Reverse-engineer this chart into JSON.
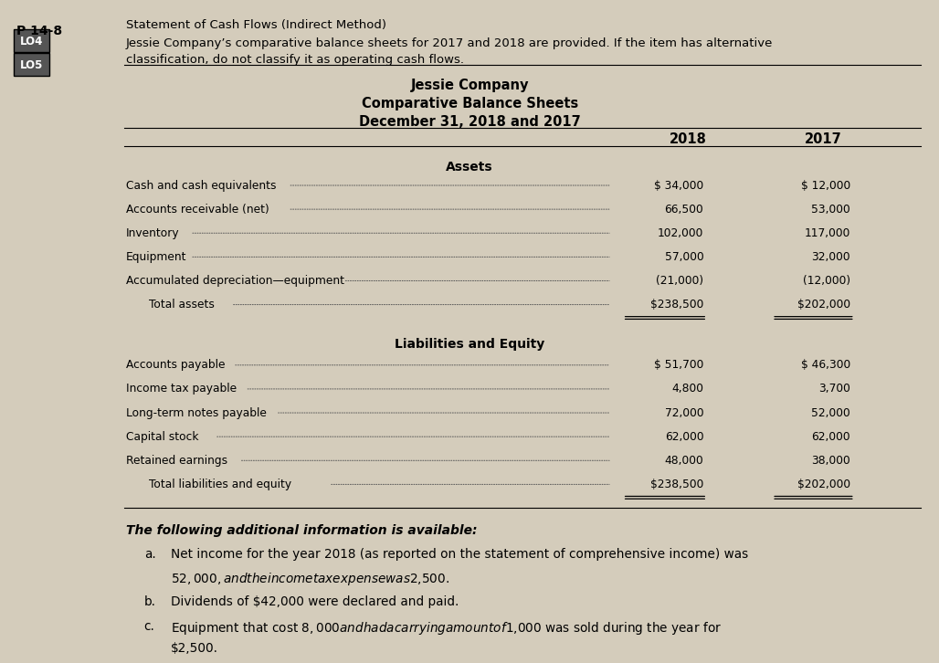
{
  "bg_color": "#d4ccbb",
  "title_problem": "P 14-8",
  "lo_labels": [
    "LO4",
    "LO5"
  ],
  "header_line1": "Statement of Cash Flows (Indirect Method)",
  "header_line2": "Jessie Company’s comparative balance sheets for 2017 and 2018 are provided. If the item has alternative",
  "header_line3": "classification, do not classify it as operating cash flows.",
  "company_title": "Jessie Company",
  "sheet_title": "Comparative Balance Sheets",
  "date_title": "December 31, 2018 and 2017",
  "col_2018": "2018",
  "col_2017": "2017",
  "assets_header": "Assets",
  "asset_rows": [
    {
      "label": "Cash and cash equivalents",
      "val2018": "$ 34,000",
      "val2017": "$ 12,000"
    },
    {
      "label": "Accounts receivable (net)",
      "val2018": "66,500",
      "val2017": "53,000"
    },
    {
      "label": "Inventory",
      "val2018": "102,000",
      "val2017": "117,000"
    },
    {
      "label": "Equipment",
      "val2018": "57,000",
      "val2017": "32,000"
    },
    {
      "label": "Accumulated depreciation—equipment",
      "val2018": "(21,000)",
      "val2017": "(12,000)"
    },
    {
      "label": "  Total assets",
      "val2018": "$238,500",
      "val2017": "$202,000",
      "is_total": true
    }
  ],
  "liabilities_header": "Liabilities and Equity",
  "liability_rows": [
    {
      "label": "Accounts payable",
      "val2018": "$ 51,700",
      "val2017": "$ 46,300"
    },
    {
      "label": "Income tax payable",
      "val2018": "4,800",
      "val2017": "3,700"
    },
    {
      "label": "Long-term notes payable",
      "val2018": "72,000",
      "val2017": "52,000"
    },
    {
      "label": "Capital stock",
      "val2018": "62,000",
      "val2017": "62,000"
    },
    {
      "label": "Retained earnings",
      "val2018": "48,000",
      "val2017": "38,000"
    },
    {
      "label": "  Total liabilities and equity",
      "val2018": "$238,500",
      "val2017": "$202,000",
      "is_total": true
    }
  ],
  "additional_info_header": "The following additional information is available:",
  "additional_items": [
    {
      "label": "a.",
      "text": "Net income for the year 2018 (as reported on the statement of comprehensive income) was\n$52,000, and the income tax expense was $2,500."
    },
    {
      "label": "b.",
      "text": "Dividends of $42,000 were declared and paid."
    },
    {
      "label": "c.",
      "text": "Equipment that cost $8,000 and had a carrying amount of $1,000 was sold during the year for\n$2,500."
    }
  ]
}
